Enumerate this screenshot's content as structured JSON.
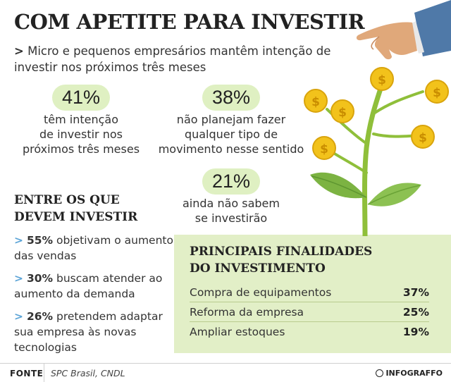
{
  "title": "COM APETITE PARA INVESTIR",
  "subtitle": {
    "arrow": ">",
    "text": "Micro e pequenos empresários mantêm intenção de investir nos próximos três meses"
  },
  "stats": [
    {
      "pct": "41%",
      "lines": [
        "têm intenção",
        "de investir nos",
        "próximos três meses"
      ]
    },
    {
      "pct": "38%",
      "lines": [
        "não planejam fazer",
        "qualquer tipo de",
        "movimento nesse sentido"
      ]
    },
    {
      "pct": "21%",
      "lines": [
        "ainda não sabem",
        "se investirão"
      ]
    }
  ],
  "section": {
    "heading_line1": "ENTRE OS QUE",
    "heading_line2": "DEVEM INVESTIR",
    "bullets": [
      {
        "arrow": ">",
        "value": "55%",
        "text": " objetivam o aumento das vendas"
      },
      {
        "arrow": ">",
        "value": "30%",
        "text": " buscam atender ao aumento da demanda"
      },
      {
        "arrow": ">",
        "value": "26%",
        "text": " pretendem adaptar sua empresa às novas tecnologias"
      }
    ]
  },
  "box": {
    "heading_line1": "PRINCIPAIS FINALIDADES",
    "heading_line2": "DO INVESTIMENTO",
    "rows": [
      {
        "label": "Compra de equipamentos",
        "value": "37%"
      },
      {
        "label": "Reforma da empresa",
        "value": "25%"
      },
      {
        "label": "Ampliar estoques",
        "value": "19%"
      }
    ],
    "bg_color": "#e2efc7"
  },
  "footer": {
    "label": "FONTE",
    "source": "SPC Brasil, CNDL",
    "brand": "INFOGRAFFO"
  },
  "colors": {
    "accent_green": "#dff0c2",
    "arrow_blue": "#5aa3d6",
    "coin": "#f2c21b"
  },
  "icons": [
    "hand-icon",
    "coin-icon",
    "plant-icon"
  ]
}
